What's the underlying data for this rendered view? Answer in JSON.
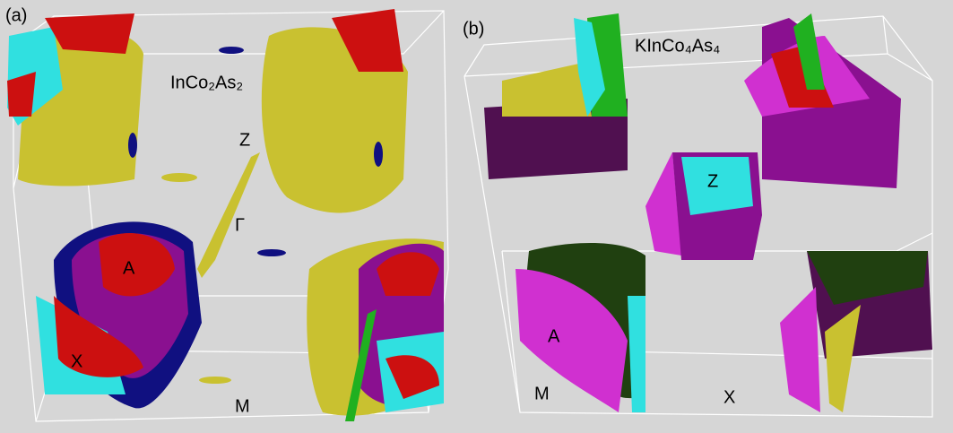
{
  "panels": [
    {
      "label": "(a)",
      "formula": "InCo₂As₂",
      "points": [
        "Z",
        "Γ",
        "A",
        "X",
        "M"
      ]
    },
    {
      "label": "(b)",
      "formula": "KInCo₄As₄",
      "points": [
        "Z",
        "A",
        "M",
        "X"
      ]
    }
  ]
}
